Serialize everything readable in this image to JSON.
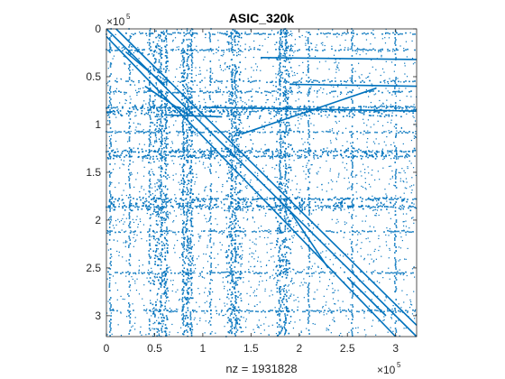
{
  "chart_data": {
    "type": "scatter",
    "title": "ASIC_320k",
    "xlabel": "nz = 1931828",
    "ylabel": "",
    "xlim": [
      0,
      321821
    ],
    "ylim": [
      0,
      321821
    ],
    "y_reversed": true,
    "x_ticks": [
      "0",
      "0.5",
      "1",
      "1.5",
      "2",
      "2.5",
      "3"
    ],
    "y_ticks": [
      "0",
      "0.5",
      "1",
      "1.5",
      "2",
      "2.5",
      "3"
    ],
    "tick_values": [
      0,
      50000,
      100000,
      150000,
      200000,
      250000,
      300000
    ],
    "x_exponent": {
      "base": "×10",
      "power": "5"
    },
    "y_exponent": {
      "base": "×10",
      "power": "5"
    },
    "marker_color": "#0072BD",
    "dense_columns": [
      4000,
      24000,
      45000,
      57000,
      62000,
      80000,
      84000,
      88000,
      108000,
      130000,
      134000,
      180000,
      186000,
      210000,
      255000,
      300000
    ],
    "dense_rows": [
      5000,
      22000,
      55000,
      66000,
      82000,
      86000,
      108000,
      128000,
      133000,
      178000,
      186000,
      212000,
      255000,
      295000
    ],
    "bands": [
      {
        "x0": 48000,
        "x1": 64000,
        "y0": 0,
        "y1": 321821
      },
      {
        "x0": 78000,
        "x1": 90000,
        "y0": 0,
        "y1": 321821
      },
      {
        "x0": 124000,
        "x1": 140000,
        "y0": 0,
        "y1": 321821
      },
      {
        "x0": 176000,
        "x1": 192000,
        "y0": 0,
        "y1": 321821
      },
      {
        "x0": 0,
        "x1": 321821,
        "y0": 80000,
        "y1": 92000
      },
      {
        "x0": 0,
        "x1": 321821,
        "y0": 125000,
        "y1": 136000
      },
      {
        "x0": 0,
        "x1": 321821,
        "y0": 176000,
        "y1": 190000
      }
    ],
    "diagonals": [
      {
        "x0": 0,
        "y0": 0,
        "x1": 321821,
        "y1": 321821
      },
      {
        "x0": 0,
        "y0": 8000,
        "x1": 300000,
        "y1": 321821
      },
      {
        "x0": 10000,
        "y0": 0,
        "x1": 321821,
        "y1": 310000
      }
    ],
    "segments": [
      {
        "x0": 20000,
        "y0": 24000,
        "x1": 60000,
        "y1": 58000
      },
      {
        "x0": 40000,
        "y0": 60000,
        "x1": 85000,
        "y1": 90000
      },
      {
        "x0": 160000,
        "y0": 30000,
        "x1": 321821,
        "y1": 32000
      },
      {
        "x0": 190000,
        "y0": 58000,
        "x1": 321821,
        "y1": 60000
      },
      {
        "x0": 100000,
        "y0": 82000,
        "x1": 321821,
        "y1": 86000
      },
      {
        "x0": 60000,
        "y0": 90000,
        "x1": 120000,
        "y1": 92000
      },
      {
        "x0": 250000,
        "y0": 260000,
        "x1": 290000,
        "y1": 300000
      },
      {
        "x0": 190000,
        "y0": 190000,
        "x1": 230000,
        "y1": 250000
      },
      {
        "x0": 140000,
        "y0": 110000,
        "x1": 280000,
        "y1": 62000
      }
    ]
  }
}
